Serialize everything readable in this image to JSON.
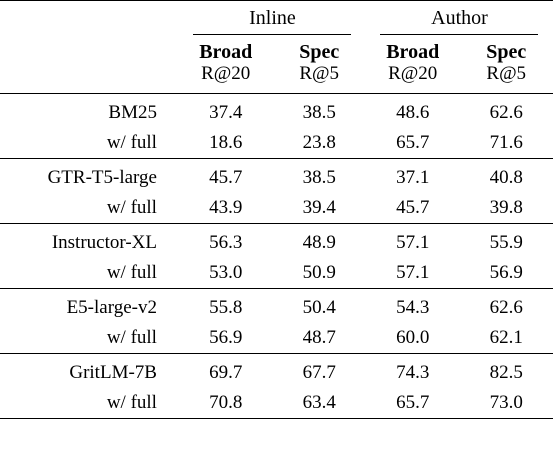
{
  "groups": {
    "inline": "Inline",
    "author": "Author"
  },
  "subheaders": [
    {
      "name": "Broad",
      "metric": "R@20"
    },
    {
      "name": "Spec",
      "metric": "R@5"
    },
    {
      "name": "Broad",
      "metric": "R@20"
    },
    {
      "name": "Spec",
      "metric": "R@5"
    }
  ],
  "rows": [
    {
      "model": "BM25",
      "values": [
        {
          "v": "37.4",
          "bold": true
        },
        {
          "v": "38.5",
          "bold": true
        },
        {
          "v": "48.6",
          "bold": false
        },
        {
          "v": "62.6",
          "bold": false
        }
      ],
      "full_label": "w/ full",
      "full_values": [
        {
          "v": "18.6",
          "bold": false
        },
        {
          "v": "23.8",
          "bold": false
        },
        {
          "v": "65.7",
          "bold": true
        },
        {
          "v": "71.6",
          "bold": true
        }
      ]
    },
    {
      "model": "GTR-T5-large",
      "values": [
        {
          "v": "45.7",
          "bold": true
        },
        {
          "v": "38.5",
          "bold": false
        },
        {
          "v": "37.1",
          "bold": false
        },
        {
          "v": "40.8",
          "bold": true
        }
      ],
      "full_label": "w/ full",
      "full_values": [
        {
          "v": "43.9",
          "bold": false
        },
        {
          "v": "39.4",
          "bold": true
        },
        {
          "v": "45.7",
          "bold": true
        },
        {
          "v": "39.8",
          "bold": false
        }
      ]
    },
    {
      "model": "Instructor-XL",
      "values": [
        {
          "v": "56.3",
          "bold": true
        },
        {
          "v": "48.9",
          "bold": false
        },
        {
          "v": "57.1",
          "bold": true
        },
        {
          "v": "55.9",
          "bold": false
        }
      ],
      "full_label": "w/ full",
      "full_values": [
        {
          "v": "53.0",
          "bold": false
        },
        {
          "v": "50.9",
          "bold": true
        },
        {
          "v": "57.1",
          "bold": true
        },
        {
          "v": "56.9",
          "bold": true
        }
      ]
    },
    {
      "model": "E5-large-v2",
      "values": [
        {
          "v": "55.8",
          "bold": false
        },
        {
          "v": "50.4",
          "bold": true
        },
        {
          "v": "54.3",
          "bold": false
        },
        {
          "v": "62.6",
          "bold": true
        }
      ],
      "full_label": "w/ full",
      "full_values": [
        {
          "v": "56.9",
          "bold": true
        },
        {
          "v": "48.7",
          "bold": false
        },
        {
          "v": "60.0",
          "bold": true
        },
        {
          "v": "62.1",
          "bold": false
        }
      ]
    },
    {
      "model": "GritLM-7B",
      "values": [
        {
          "v": "69.7",
          "bold": false
        },
        {
          "v": "67.7",
          "bold": true
        },
        {
          "v": "74.3",
          "bold": true
        },
        {
          "v": "82.5",
          "bold": true
        }
      ],
      "full_label": "w/ full",
      "full_values": [
        {
          "v": "70.8",
          "bold": true
        },
        {
          "v": "63.4",
          "bold": false
        },
        {
          "v": "65.7",
          "bold": false
        },
        {
          "v": "73.0",
          "bold": false
        }
      ]
    }
  ]
}
